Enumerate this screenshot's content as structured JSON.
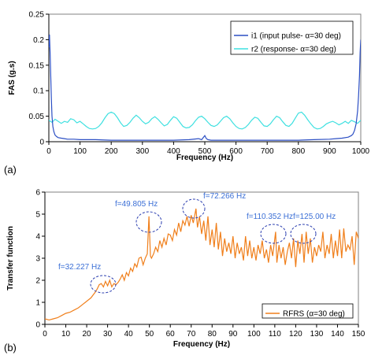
{
  "chart_data": [
    {
      "type": "line",
      "panel_label": "(a)",
      "xlabel": "Frequency (Hz)",
      "ylabel": "FAS (g.s)",
      "xlim": [
        0,
        1000
      ],
      "ylim": [
        0,
        0.25
      ],
      "xticks": [
        0,
        100,
        200,
        300,
        400,
        500,
        600,
        700,
        800,
        900,
        1000
      ],
      "yticks": [
        0,
        0.05,
        0.1,
        0.15,
        0.2,
        0.25
      ],
      "yticklabels": [
        "0",
        "0.05",
        "0.1",
        "0.15",
        "0.2",
        "0.25"
      ],
      "legend_position": "top-right",
      "series": [
        {
          "name": "i1 (input pulse- α=30 deg)",
          "color": "#2c4fc4",
          "x": [
            0,
            2,
            4,
            6,
            8,
            10,
            13,
            16,
            20,
            25,
            30,
            40,
            50,
            60,
            80,
            100,
            150,
            200,
            250,
            300,
            350,
            400,
            450,
            480,
            490,
            500,
            505,
            510,
            520,
            550,
            600,
            650,
            700,
            750,
            800,
            850,
            900,
            920,
            940,
            960,
            970,
            975,
            980,
            985,
            990,
            993,
            996,
            998,
            1000
          ],
          "y": [
            0.185,
            0.21,
            0.175,
            0.13,
            0.085,
            0.05,
            0.03,
            0.02,
            0.013,
            0.01,
            0.008,
            0.007,
            0.006,
            0.005,
            0.005,
            0.004,
            0.004,
            0.003,
            0.003,
            0.003,
            0.003,
            0.003,
            0.004,
            0.006,
            0.004,
            0.012,
            0.006,
            0.004,
            0.003,
            0.003,
            0.003,
            0.003,
            0.003,
            0.003,
            0.003,
            0.004,
            0.005,
            0.006,
            0.007,
            0.009,
            0.012,
            0.015,
            0.022,
            0.035,
            0.06,
            0.09,
            0.13,
            0.175,
            0.2
          ]
        },
        {
          "name": "r2 (response- α=30 deg)",
          "color": "#3ee0e0",
          "x": [
            0,
            10,
            20,
            30,
            40,
            50,
            60,
            70,
            80,
            90,
            100,
            110,
            120,
            130,
            140,
            150,
            160,
            170,
            180,
            190,
            200,
            210,
            220,
            230,
            240,
            250,
            260,
            270,
            280,
            290,
            300,
            310,
            320,
            330,
            340,
            350,
            360,
            370,
            380,
            390,
            400,
            410,
            420,
            430,
            440,
            450,
            460,
            470,
            480,
            490,
            500,
            510,
            520,
            530,
            540,
            550,
            560,
            570,
            580,
            590,
            600,
            610,
            620,
            630,
            640,
            650,
            660,
            670,
            680,
            690,
            700,
            710,
            720,
            730,
            740,
            750,
            760,
            770,
            780,
            790,
            800,
            810,
            820,
            830,
            840,
            850,
            860,
            870,
            880,
            890,
            900,
            910,
            920,
            930,
            940,
            950,
            960,
            970,
            980,
            990,
            1000
          ],
          "y": [
            0.042,
            0.038,
            0.044,
            0.04,
            0.036,
            0.04,
            0.038,
            0.045,
            0.043,
            0.037,
            0.04,
            0.035,
            0.03,
            0.026,
            0.025,
            0.026,
            0.03,
            0.037,
            0.047,
            0.055,
            0.058,
            0.055,
            0.047,
            0.037,
            0.03,
            0.032,
            0.038,
            0.046,
            0.052,
            0.047,
            0.04,
            0.035,
            0.038,
            0.045,
            0.049,
            0.044,
            0.037,
            0.031,
            0.034,
            0.042,
            0.049,
            0.046,
            0.038,
            0.03,
            0.027,
            0.028,
            0.033,
            0.041,
            0.048,
            0.05,
            0.045,
            0.038,
            0.032,
            0.03,
            0.033,
            0.04,
            0.047,
            0.05,
            0.045,
            0.037,
            0.03,
            0.026,
            0.025,
            0.028,
            0.034,
            0.042,
            0.048,
            0.046,
            0.038,
            0.031,
            0.03,
            0.035,
            0.043,
            0.05,
            0.047,
            0.039,
            0.032,
            0.03,
            0.036,
            0.046,
            0.056,
            0.058,
            0.052,
            0.043,
            0.035,
            0.028,
            0.025,
            0.026,
            0.03,
            0.035,
            0.038,
            0.04,
            0.037,
            0.033,
            0.036,
            0.04,
            0.036,
            0.042,
            0.039,
            0.036,
            0.042
          ]
        }
      ]
    },
    {
      "type": "line",
      "panel_label": "(b)",
      "xlabel": "Frequency (Hz)",
      "ylabel": "Transfer function",
      "xlim": [
        0,
        150
      ],
      "ylim": [
        0,
        6
      ],
      "xticks": [
        0,
        10,
        20,
        30,
        40,
        50,
        60,
        70,
        80,
        90,
        100,
        110,
        120,
        130,
        140,
        150
      ],
      "yticks": [
        0,
        1,
        2,
        3,
        4,
        5,
        6
      ],
      "yticklabels": [
        "0",
        "1",
        "2",
        "3",
        "4",
        "5",
        "6"
      ],
      "legend_position": "bottom-right",
      "series": [
        {
          "name": "RFRS (α=30 deg)",
          "color": "#f07f1b",
          "x": [
            0,
            2,
            4,
            6,
            8,
            10,
            12,
            14,
            16,
            18,
            20,
            22,
            24,
            25,
            26,
            27,
            28,
            29,
            30,
            31,
            32,
            33,
            34,
            35,
            36,
            37,
            38,
            39,
            40,
            41,
            42,
            43,
            44,
            45,
            46,
            47,
            48,
            49,
            49.8,
            50.5,
            51,
            52,
            53,
            54,
            55,
            56,
            57,
            58,
            59,
            60,
            61,
            62,
            63,
            64,
            65,
            66,
            67,
            68,
            69,
            70,
            71,
            72.3,
            73,
            74,
            75,
            76,
            77,
            78,
            79,
            80,
            81,
            82,
            83,
            84,
            85,
            86,
            87,
            88,
            89,
            90,
            91,
            92,
            93,
            94,
            95,
            96,
            97,
            98,
            99,
            100,
            101,
            102,
            103,
            104,
            105,
            106,
            107,
            108,
            109,
            110.4,
            111,
            112,
            113,
            114,
            115,
            116,
            117,
            118,
            119,
            120,
            121,
            122,
            123,
            124,
            125,
            126,
            127,
            128,
            129,
            130,
            131,
            132,
            133,
            134,
            135,
            136,
            137,
            138,
            139,
            140,
            141,
            142,
            143,
            144,
            145,
            146,
            147,
            148,
            149,
            150
          ],
          "y": [
            0.25,
            0.2,
            0.25,
            0.3,
            0.4,
            0.5,
            0.55,
            0.65,
            0.75,
            0.9,
            1.05,
            1.2,
            1.45,
            1.6,
            1.8,
            1.85,
            1.7,
            1.95,
            1.75,
            2.0,
            1.7,
            1.85,
            1.8,
            1.9,
            2.05,
            2.25,
            2.0,
            2.35,
            2.2,
            2.55,
            2.4,
            2.75,
            2.6,
            3.0,
            3.05,
            2.7,
            3.0,
            3.2,
            4.9,
            3.1,
            3.0,
            3.2,
            3.5,
            3.3,
            3.8,
            3.5,
            3.9,
            3.6,
            4.1,
            4.05,
            3.8,
            4.3,
            4.05,
            4.6,
            4.2,
            4.7,
            4.5,
            4.9,
            4.45,
            4.95,
            4.6,
            5.25,
            4.4,
            4.9,
            4.1,
            4.7,
            3.8,
            4.9,
            3.6,
            4.3,
            3.5,
            4.6,
            3.4,
            4.2,
            3.1,
            3.9,
            3.3,
            3.7,
            3.2,
            4.0,
            3.0,
            3.7,
            3.2,
            3.5,
            2.9,
            4.0,
            3.1,
            3.8,
            3.0,
            3.5,
            2.9,
            3.6,
            3.2,
            3.8,
            3.0,
            3.4,
            2.8,
            3.6,
            3.1,
            4.2,
            2.8,
            3.6,
            3.0,
            3.5,
            2.7,
            3.3,
            3.7,
            3.0,
            3.9,
            2.6,
            3.8,
            3.2,
            4.1,
            2.8,
            4.2,
            3.2,
            3.9,
            2.8,
            3.5,
            3.1,
            3.6,
            3.3,
            4.2,
            3.0,
            3.6,
            3.2,
            4.1,
            3.0,
            3.8,
            3.1,
            4.3,
            3.0,
            4.35,
            3.3,
            3.6,
            3.4,
            4.0,
            2.7,
            4.2,
            3.9
          ]
        }
      ],
      "annotations": [
        {
          "text": "f=32.227 Hz",
          "x": 32.227,
          "y": 1.9
        },
        {
          "text": "f=49.805 Hz",
          "x": 49.805,
          "y": 4.9
        },
        {
          "text": "f=72.266 Hz",
          "x": 72.266,
          "y": 5.25
        },
        {
          "text": "f=110.352 Hz",
          "x": 110.352,
          "y": 4.2
        },
        {
          "text": "f=125.00 Hz",
          "x": 125.0,
          "y": 4.2
        }
      ]
    }
  ]
}
